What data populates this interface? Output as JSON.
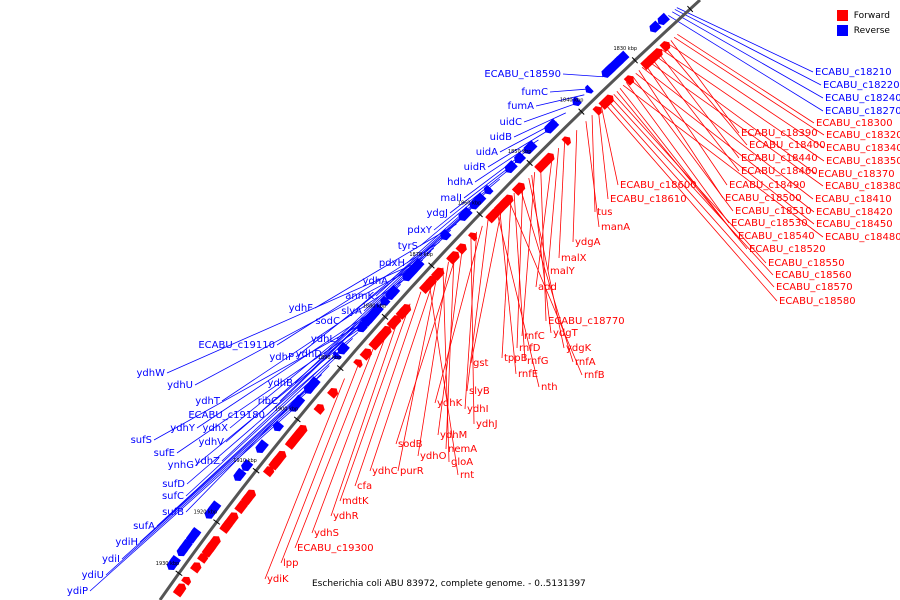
{
  "legend": [
    {
      "label": "Forward",
      "color": "#ff0000"
    },
    {
      "label": "Reverse",
      "color": "#0000ff"
    }
  ],
  "caption": "Escherichia coli ABU 83972, complete genome. - 0..5131397",
  "colors": {
    "forward": "#ff0000",
    "reverse": "#0000ff",
    "backbone": "#555555"
  },
  "ticks": [
    "1820 kbp",
    "1830 kbp",
    "1840 kbp",
    "1850 kbp",
    "1860 kbp",
    "1870 kbp",
    "1880 kbp",
    "1890 kbp",
    "1900 kbp",
    "1910 kbp",
    "1920 kbp",
    "1930 kbp"
  ],
  "reverse_genes": [
    "ECABU_c18210",
    "ECABU_c18220",
    "ECABU_c18240",
    "ECABU_c18270",
    "ECABU_c18590",
    "fumC",
    "fumA",
    "uidC",
    "uidB",
    "uidA",
    "uidR",
    "hdhA",
    "malI",
    "ydgJ",
    "pdxY",
    "tyrS",
    "pdxH",
    "ydhA",
    "anmK",
    "slyA",
    "ydhF",
    "sodC",
    "ydhL",
    "ECABU_c19110",
    "ydhP",
    "ydhD",
    "ydhW",
    "ydhU",
    "ydhB",
    "ydhT",
    "ribC",
    "ECABU_c19180",
    "ydhX",
    "ydhY",
    "ydhV",
    "sufS",
    "sufE",
    "ynhG",
    "ydhZ",
    "sufD",
    "sufC",
    "sufB",
    "sufA",
    "ydiH",
    "ydiI",
    "ydiU",
    "ydiP"
  ],
  "forward_genes": [
    "ECABU_c18300",
    "ECABU_c18320",
    "ECABU_c18390",
    "ECABU_c18340",
    "ECABU_c18400",
    "ECABU_c18350",
    "ECABU_c18440",
    "ECABU_c18370",
    "ECABU_c18460",
    "ECABU_c18380",
    "ECABU_c18490",
    "ECABU_c18410",
    "ECABU_c18500",
    "ECABU_c18420",
    "ECABU_c18510",
    "ECABU_c18450",
    "ECABU_c18530",
    "ECABU_c18480",
    "ECABU_c18540",
    "ECABU_c18520",
    "ECABU_c18550",
    "ECABU_c18560",
    "ECABU_c18570",
    "ECABU_c18580",
    "ECABU_c18600",
    "ECABU_c18610",
    "tus",
    "manA",
    "ydgA",
    "malX",
    "malY",
    "add",
    "ECABU_c18770",
    "rnfC",
    "ydgT",
    "ydgK",
    "rnfD",
    "rnfA",
    "rnfG",
    "tppB",
    "rnfB",
    "gst",
    "rnfE",
    "nth",
    "slyB",
    "ydhK",
    "ydhI",
    "ydhJ",
    "ydhM",
    "sodB",
    "nemA",
    "ydhO",
    "gloA",
    "purR",
    "ydhC",
    "rnt",
    "cfa",
    "mdtK",
    "ydhR",
    "ydhS",
    "ECABU_c19300",
    "lpp",
    "ydiK"
  ]
}
